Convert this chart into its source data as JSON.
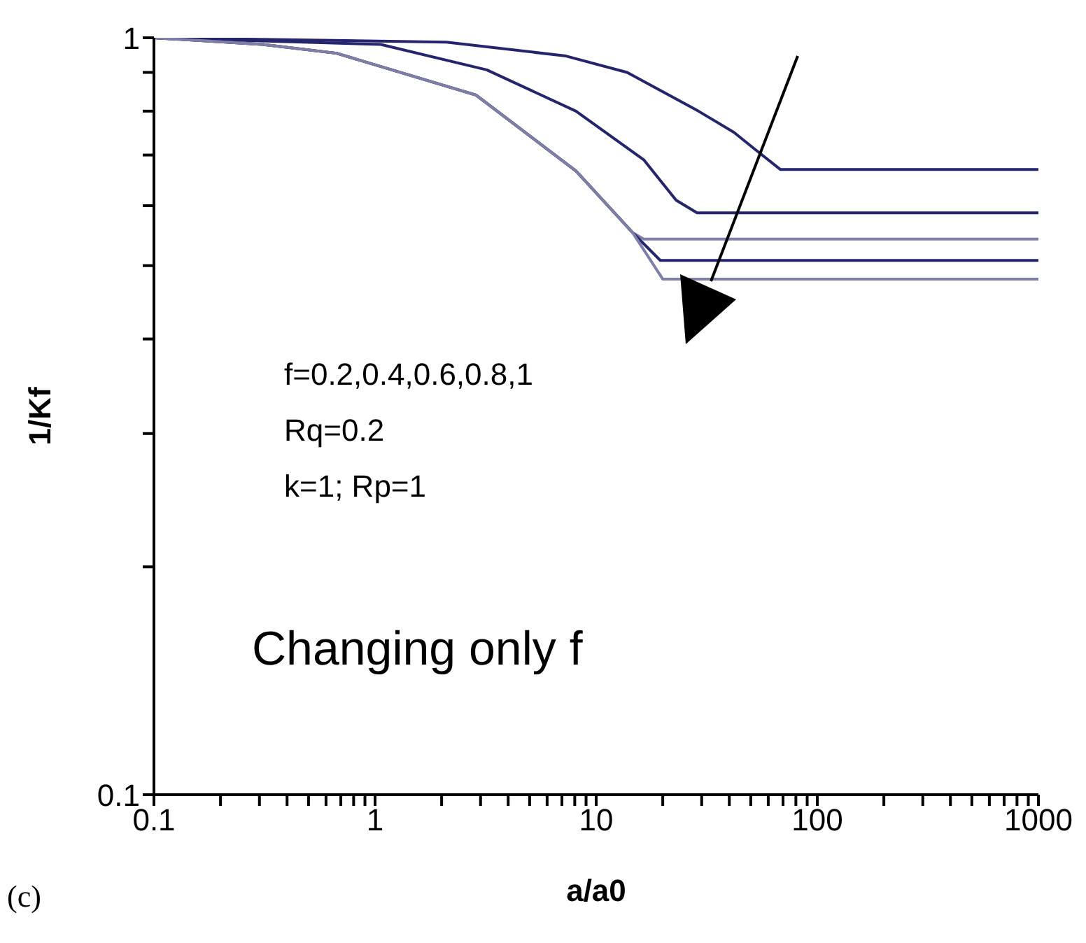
{
  "chart_data": {
    "type": "line",
    "xlabel": "a/a0",
    "ylabel": "1/Kf",
    "log": "xy",
    "marker": "none",
    "line_style": "solid",
    "xlim": [
      0.1,
      1000
    ],
    "ylim": [
      0.1,
      1
    ],
    "xticks": [
      0.1,
      {
        "value": 0.2,
        "label": null
      },
      {
        "value": 0.3,
        "label": null
      },
      {
        "value": 0.4,
        "label": null
      },
      {
        "value": 0.5,
        "label": null
      },
      {
        "value": 0.6,
        "label": null
      },
      {
        "value": 0.7,
        "label": null
      },
      {
        "value": 0.8,
        "label": null
      },
      {
        "value": 0.9,
        "label": null
      },
      1,
      {
        "value": 2,
        "label": null
      },
      {
        "value": 3,
        "label": null
      },
      {
        "value": 4,
        "label": null
      },
      {
        "value": 5,
        "label": null
      },
      {
        "value": 6,
        "label": null
      },
      {
        "value": 7,
        "label": null
      },
      {
        "value": 8,
        "label": null
      },
      {
        "value": 9,
        "label": null
      },
      10,
      {
        "value": 20,
        "label": null
      },
      {
        "value": 30,
        "label": null
      },
      {
        "value": 40,
        "label": null
      },
      {
        "value": 50,
        "label": null
      },
      {
        "value": 60,
        "label": null
      },
      {
        "value": 70,
        "label": null
      },
      {
        "value": 80,
        "label": null
      },
      {
        "value": 90,
        "label": null
      },
      100,
      {
        "value": 200,
        "label": null
      },
      {
        "value": 300,
        "label": null
      },
      {
        "value": 400,
        "label": null
      },
      {
        "value": 500,
        "label": null
      },
      {
        "value": 600,
        "label": null
      },
      {
        "value": 700,
        "label": null
      },
      {
        "value": 800,
        "label": null
      },
      {
        "value": 900,
        "label": null
      },
      1000
    ],
    "yticks": [
      0.1,
      {
        "value": 0.2,
        "label": null
      },
      {
        "value": 0.3,
        "label": null
      },
      {
        "value": 0.4,
        "label": null
      },
      {
        "value": 0.5,
        "label": null
      },
      {
        "value": 0.6,
        "label": null
      },
      {
        "value": 0.7,
        "label": null
      },
      {
        "value": 0.8,
        "label": null
      },
      {
        "value": 0.9,
        "label": null
      },
      1
    ],
    "series": [
      {
        "color": "#25256e",
        "x": [
          0.1,
          2.1,
          7.3,
          13.8,
          29,
          42,
          53,
          68,
          1000
        ],
        "values": [
          1,
          0.987,
          0.946,
          0.9,
          0.8,
          0.75,
          0.71,
          0.67,
          0.67
        ]
      },
      {
        "color": "#25256e",
        "x": [
          0.1,
          1.06,
          3.2,
          8.1,
          16.4,
          23,
          28.6,
          1000
        ],
        "values": [
          1,
          0.98,
          0.907,
          0.8,
          0.69,
          0.61,
          0.587,
          0.587
        ]
      },
      {
        "color": "#7e7ea6",
        "x": [
          0.1,
          0.31,
          0.67,
          2.86,
          8.1,
          14.6,
          16.4,
          1000
        ],
        "values": [
          1,
          0.98,
          0.954,
          0.84,
          0.667,
          0.553,
          0.542,
          0.542
        ]
      },
      {
        "color": "#25256e",
        "x": [
          0.1,
          0.31,
          0.67,
          2.86,
          8.1,
          14.6,
          19.5,
          1000
        ],
        "values": [
          1,
          0.98,
          0.954,
          0.84,
          0.667,
          0.553,
          0.508,
          0.508
        ]
      },
      {
        "color": "#7e7ea6",
        "x": [
          0.1,
          0.31,
          0.67,
          2.86,
          8.1,
          14.6,
          20,
          1000
        ],
        "values": [
          1,
          0.98,
          0.954,
          0.84,
          0.667,
          0.553,
          0.48,
          0.48
        ]
      }
    ],
    "annotations": [
      "f=0.2,0.4,0.6,0.8,1",
      "Rq=0.2",
      "k=1; Rp=1",
      "Changing only f",
      "(c)"
    ]
  }
}
